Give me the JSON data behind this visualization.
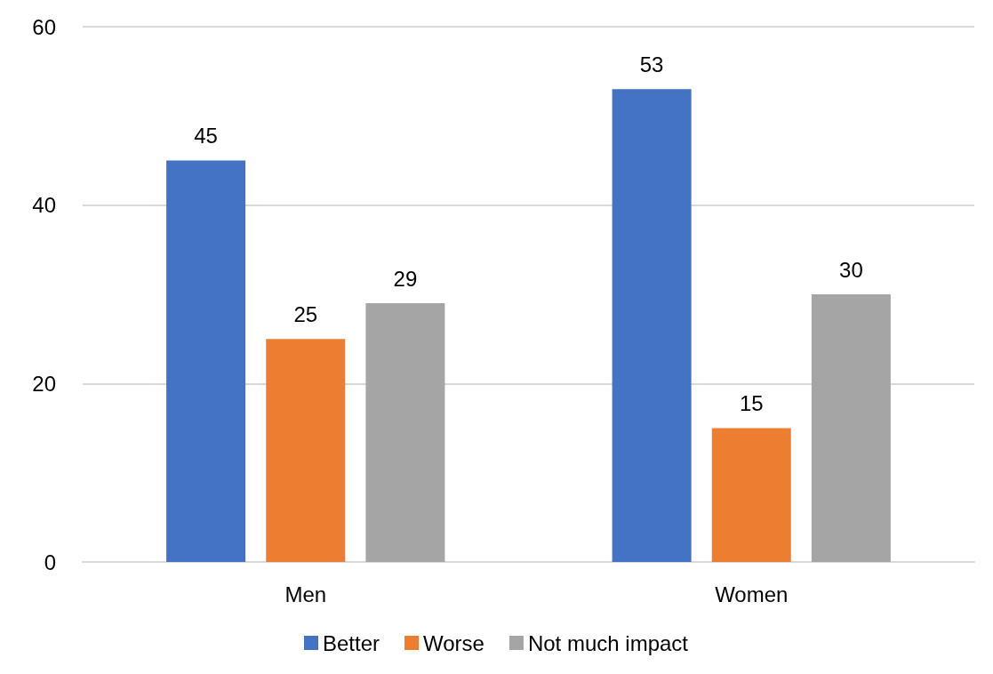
{
  "chart_data": {
    "type": "bar",
    "categories": [
      "Men",
      "Women"
    ],
    "series": [
      {
        "name": "Better",
        "color": "#4472c4",
        "values": [
          45,
          53
        ]
      },
      {
        "name": "Worse",
        "color": "#ed7d31",
        "values": [
          25,
          15
        ]
      },
      {
        "name": "Not much impact",
        "color": "#a5a5a5",
        "values": [
          29,
          30
        ]
      }
    ],
    "ylim": [
      0,
      60
    ],
    "yticks": [
      0,
      20,
      40,
      60
    ],
    "grid": "y",
    "legend": "bottom",
    "data_labels": true
  }
}
